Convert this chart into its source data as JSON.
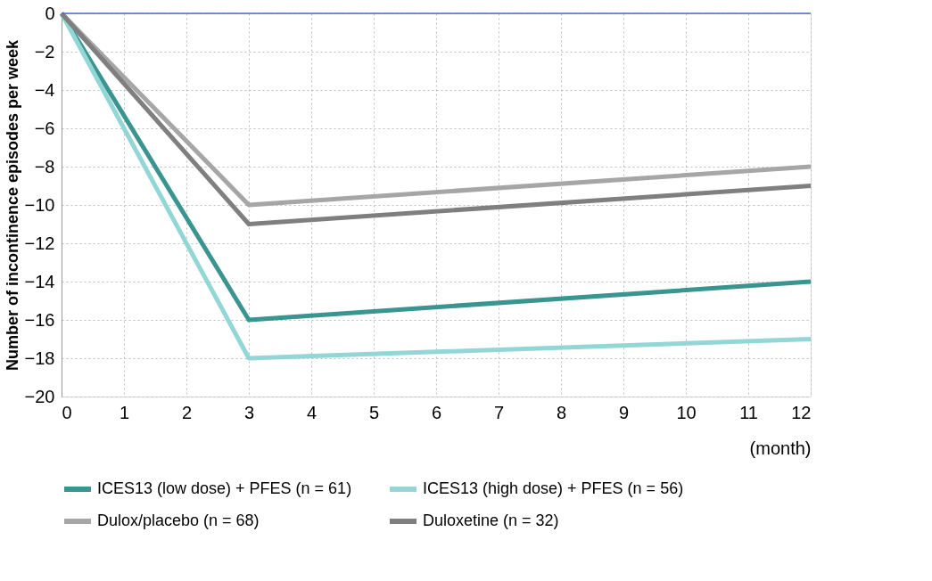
{
  "chart_data": {
    "type": "line",
    "xlabel": "(month)",
    "ylabel": "Number of incontinence episodes per week",
    "x": [
      0,
      3,
      12
    ],
    "series": [
      {
        "name": "ICES13 (low dose) + PFES (n = 61)",
        "color": "#3a9490",
        "values": [
          0,
          -16,
          -14
        ]
      },
      {
        "name": "ICES13 (high dose) + PFES (n = 56)",
        "color": "#93d6d6",
        "values": [
          0,
          -18,
          -17
        ]
      },
      {
        "name": "Dulox/placebo (n = 68)",
        "color": "#a6a6a6",
        "values": [
          0,
          -10,
          -8
        ]
      },
      {
        "name": "Duloxetine (n = 32)",
        "color": "#7f7f7f",
        "values": [
          0,
          -11,
          -9
        ]
      }
    ],
    "xlim": [
      0,
      12
    ],
    "xticks": [
      0,
      1,
      2,
      3,
      4,
      5,
      6,
      7,
      8,
      9,
      10,
      11,
      12
    ],
    "ylim": [
      -20,
      0
    ],
    "yticks": [
      -20,
      -18,
      -16,
      -14,
      -12,
      -10,
      -8,
      -6,
      -4,
      -2,
      0
    ],
    "ref_lines": [
      {
        "axis": "y",
        "value": 0,
        "color": "#4472c4"
      }
    ],
    "grid": true,
    "legend": "bottom",
    "marker": "none",
    "line_style": "solid"
  }
}
